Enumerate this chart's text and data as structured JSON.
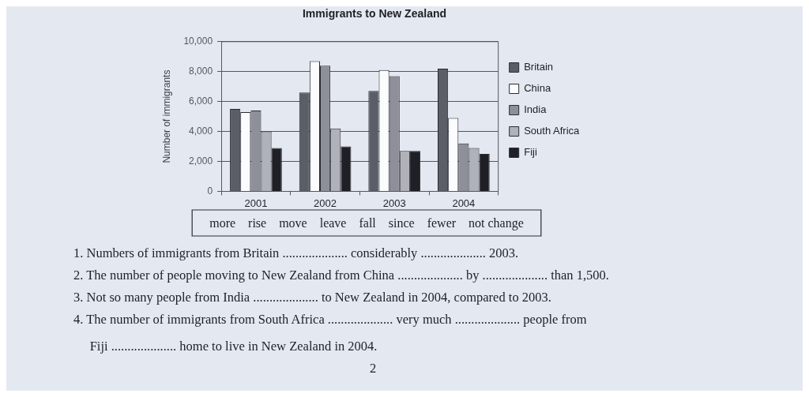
{
  "chart_data": {
    "type": "bar",
    "title": "Immigrants to New Zealand",
    "ylabel": "Number of immigrants",
    "categories": [
      "2001",
      "2002",
      "2003",
      "2004"
    ],
    "series": [
      {
        "name": "Britain",
        "color": "#5b5e66",
        "values": [
          5500,
          6600,
          6700,
          8200
        ]
      },
      {
        "name": "China",
        "color": "#fbfcfe",
        "values": [
          5300,
          8700,
          8100,
          4900
        ]
      },
      {
        "name": "India",
        "color": "#8e9099",
        "values": [
          5400,
          8400,
          7700,
          3200
        ]
      },
      {
        "name": "South Africa",
        "color": "#b0b2ba",
        "values": [
          4000,
          4200,
          2700,
          2900
        ]
      },
      {
        "name": "Fiji",
        "color": "#1f2026",
        "values": [
          2900,
          3000,
          2700,
          2500
        ]
      }
    ],
    "ylim": [
      0,
      10000
    ],
    "yticks": [
      0,
      {
        "value": 2000,
        "label": "2,000"
      },
      {
        "value": 4000,
        "label": "4,000"
      },
      {
        "value": 6000,
        "label": "6,000"
      },
      {
        "value": 8000,
        "label": "8,000"
      },
      {
        "value": 10000,
        "label": "10,000"
      }
    ],
    "grid": "y",
    "legend": "right",
    "annotations": [
      "more    rise    move    leave    fall    since    fewer    not change",
      "1. Numbers of immigrants from Britain .................... considerably .................... 2003.",
      "2. The number of people moving to New Zealand from China .................... by .................... than 1,500.",
      "3. Not so many people from India .................... to New Zealand in 2004, compared to 2003.",
      "4. The number of immigrants from South Africa .................... very much .................... people from\nFiji .................... home to live in New Zealand in 2004.",
      "2"
    ]
  }
}
